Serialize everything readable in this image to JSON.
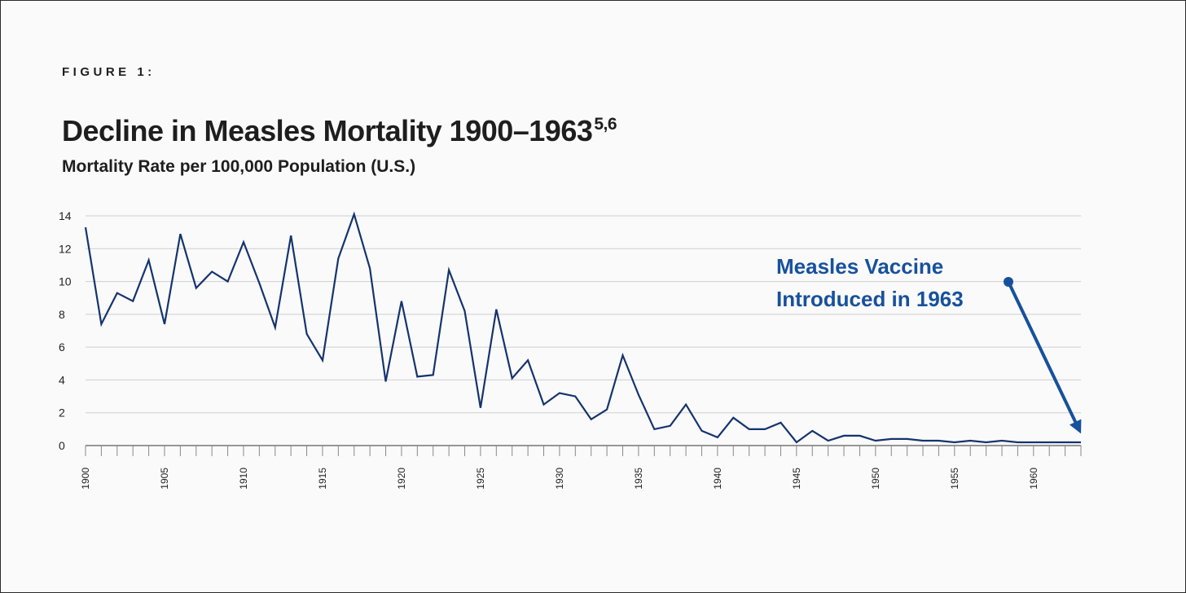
{
  "figure_label": "FIGURE 1:",
  "title": "Decline in Measles Mortality 1900–1963",
  "title_superscript": "5,6",
  "subtitle": "Mortality Rate per 100,000 Population (U.S.)",
  "colors": {
    "line": "#15346e",
    "annotation": "#17519c",
    "grid": "#cfcfcf",
    "text": "#1e1e1e"
  },
  "chart_data": {
    "type": "line",
    "title": "Decline in Measles Mortality 1900–1963",
    "xlabel": "",
    "ylabel": "Mortality Rate per 100,000 Population (U.S.)",
    "xlim": [
      1900,
      1963
    ],
    "ylim": [
      0,
      14
    ],
    "y_ticks": [
      "0",
      "2",
      "4",
      "6",
      "8",
      "10",
      "12",
      "14"
    ],
    "x_ticks": [
      "1900",
      "1905",
      "1910",
      "1915",
      "1920",
      "1925",
      "1930",
      "1935",
      "1940",
      "1945",
      "1950",
      "1955",
      "1960"
    ],
    "grid": "horizontal",
    "x": [
      1900,
      1901,
      1902,
      1903,
      1904,
      1905,
      1906,
      1907,
      1908,
      1909,
      1910,
      1911,
      1912,
      1913,
      1914,
      1915,
      1916,
      1917,
      1918,
      1919,
      1920,
      1921,
      1922,
      1923,
      1924,
      1925,
      1926,
      1927,
      1928,
      1929,
      1930,
      1931,
      1932,
      1933,
      1934,
      1935,
      1936,
      1937,
      1938,
      1939,
      1940,
      1941,
      1942,
      1943,
      1944,
      1945,
      1946,
      1947,
      1948,
      1949,
      1950,
      1951,
      1952,
      1953,
      1954,
      1955,
      1956,
      1957,
      1958,
      1959,
      1960,
      1961,
      1962,
      1963
    ],
    "series": [
      {
        "values": [
          13.3,
          7.4,
          9.3,
          8.8,
          11.3,
          7.4,
          12.9,
          9.6,
          10.6,
          10.0,
          12.4,
          9.9,
          7.2,
          12.8,
          6.8,
          5.2,
          11.4,
          14.1,
          10.8,
          3.9,
          8.8,
          4.2,
          4.3,
          10.7,
          8.2,
          2.3,
          8.3,
          4.1,
          5.2,
          2.5,
          3.2,
          3.0,
          1.6,
          2.2,
          5.5,
          3.1,
          1.0,
          1.2,
          2.5,
          0.9,
          0.5,
          1.7,
          1.0,
          1.0,
          1.4,
          0.2,
          0.9,
          0.3,
          0.6,
          0.6,
          0.3,
          0.4,
          0.4,
          0.3,
          0.3,
          0.2,
          0.3,
          0.2,
          0.3,
          0.2,
          0.2,
          0.2,
          0.2,
          0.2
        ]
      }
    ],
    "annotations": [
      {
        "text_lines": [
          "Measles Vaccine",
          "Introduced in 1963"
        ],
        "arrow_to_x": 1963
      }
    ]
  }
}
